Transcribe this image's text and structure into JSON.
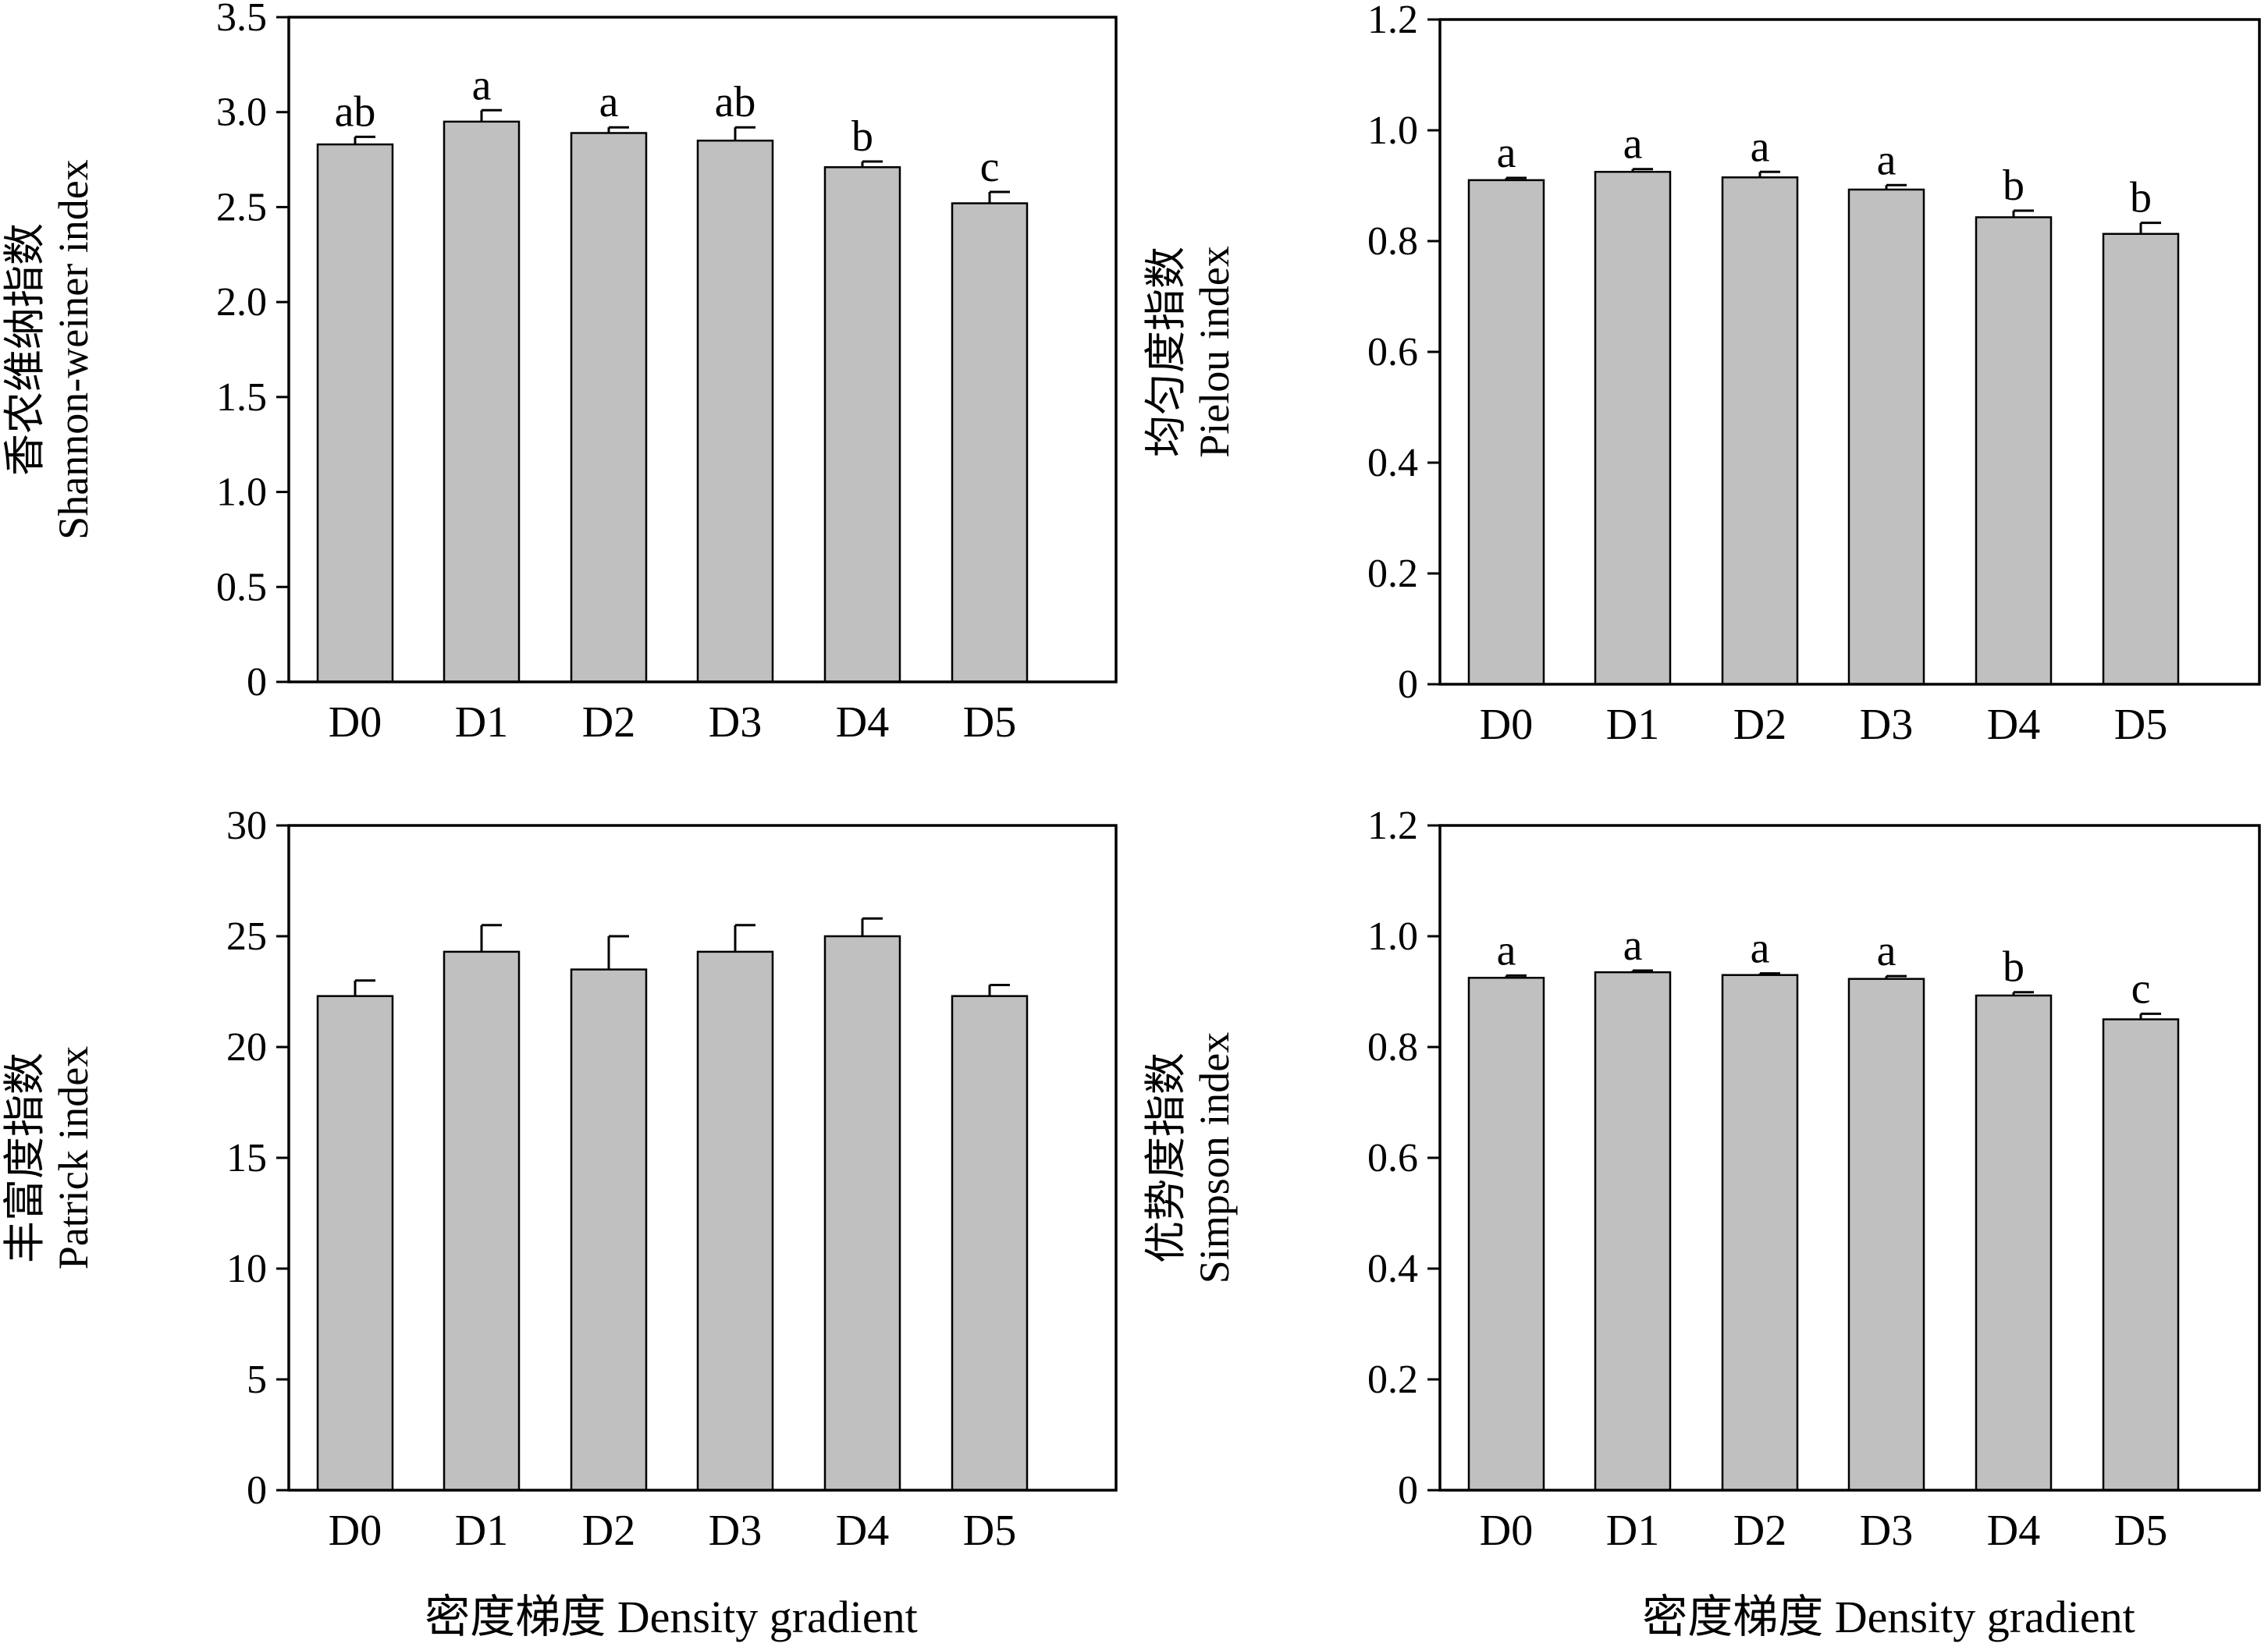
{
  "figure": {
    "x_axis_label": "密度梯度 Density gradient"
  },
  "chart_data": [
    {
      "type": "bar",
      "ylabel_line1": "香农维纳指数",
      "ylabel_line2": "Shannon-weiner index",
      "ylim": [
        0,
        3.5
      ],
      "yticks": [
        "0",
        "0.5",
        "1.0",
        "1.5",
        "2.0",
        "2.5",
        "3.0",
        "3.5"
      ],
      "categories": [
        "D0",
        "D1",
        "D2",
        "D3",
        "D4",
        "D5"
      ],
      "values": [
        2.83,
        2.95,
        2.89,
        2.85,
        2.71,
        2.52
      ],
      "errors": [
        0.04,
        0.06,
        0.03,
        0.07,
        0.03,
        0.06
      ],
      "significance": [
        "ab",
        "a",
        "a",
        "ab",
        "b",
        "c"
      ],
      "bar_color": "#c0c0c0",
      "grid": false
    },
    {
      "type": "bar",
      "ylabel_line1": "均匀度指数",
      "ylabel_line2": "Pielou index",
      "ylim": [
        0,
        1.2
      ],
      "yticks": [
        "0",
        "0.2",
        "0.4",
        "0.6",
        "0.8",
        "1.0",
        "1.2"
      ],
      "categories": [
        "D0",
        "D1",
        "D2",
        "D3",
        "D4",
        "D5"
      ],
      "values": [
        0.91,
        0.925,
        0.915,
        0.893,
        0.843,
        0.813
      ],
      "errors": [
        0.004,
        0.005,
        0.01,
        0.008,
        0.012,
        0.02
      ],
      "significance": [
        "a",
        "a",
        "a",
        "a",
        "b",
        "b"
      ],
      "bar_color": "#c0c0c0",
      "grid": false
    },
    {
      "type": "bar",
      "ylabel_line1": "丰富度指数",
      "ylabel_line2": "Patrick index",
      "ylim": [
        0,
        30
      ],
      "yticks": [
        "0",
        "5",
        "10",
        "15",
        "20",
        "25",
        "30"
      ],
      "categories": [
        "D0",
        "D1",
        "D2",
        "D3",
        "D4",
        "D5"
      ],
      "values": [
        22.3,
        24.3,
        23.5,
        24.3,
        25.0,
        22.3
      ],
      "errors": [
        0.7,
        1.2,
        1.5,
        1.2,
        0.8,
        0.5
      ],
      "significance": [
        "",
        "",
        "",
        "",
        "",
        ""
      ],
      "bar_color": "#c0c0c0",
      "grid": false
    },
    {
      "type": "bar",
      "ylabel_line1": "优势度指数",
      "ylabel_line2": "Simpson index",
      "ylim": [
        0,
        1.2
      ],
      "yticks": [
        "0",
        "0.2",
        "0.4",
        "0.6",
        "0.8",
        "1.0",
        "1.2"
      ],
      "categories": [
        "D0",
        "D1",
        "D2",
        "D3",
        "D4",
        "D5"
      ],
      "values": [
        0.925,
        0.935,
        0.93,
        0.923,
        0.893,
        0.85
      ],
      "errors": [
        0.004,
        0.003,
        0.003,
        0.005,
        0.006,
        0.01
      ],
      "significance": [
        "a",
        "a",
        "a",
        "a",
        "b",
        "c"
      ],
      "bar_color": "#c0c0c0",
      "grid": false
    }
  ]
}
